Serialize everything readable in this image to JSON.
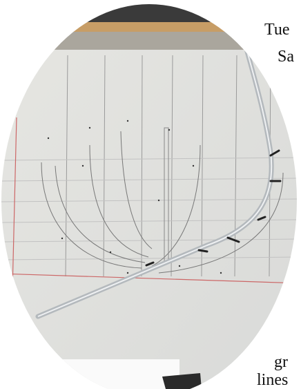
{
  "text_lines": [
    "Tue",
    "Sa",
    "gr",
    "lines"
  ]
}
